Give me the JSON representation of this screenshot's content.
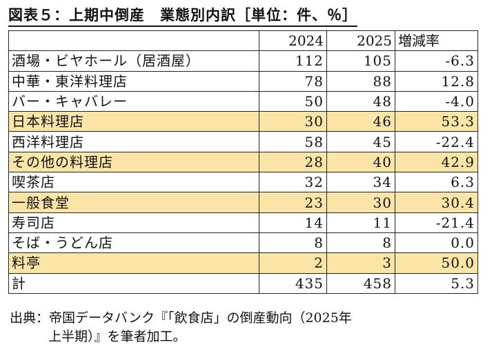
{
  "title": "図表５：上期中倒産　業態別内訳［単位：件、％］",
  "chart_data": {
    "type": "table",
    "columns": [
      "",
      "2024",
      "2025",
      "増減率"
    ],
    "rows": [
      {
        "category": "酒場・ビヤホール（居酒屋）",
        "y2024": "112",
        "y2025": "105",
        "rate": "-6.3",
        "highlight": false
      },
      {
        "category": "中華・東洋料理店",
        "y2024": "78",
        "y2025": "88",
        "rate": "12.8",
        "highlight": false
      },
      {
        "category": "バー・キャバレー",
        "y2024": "50",
        "y2025": "48",
        "rate": "-4.0",
        "highlight": false
      },
      {
        "category": "日本料理店",
        "y2024": "30",
        "y2025": "46",
        "rate": "53.3",
        "highlight": true
      },
      {
        "category": "西洋料理店",
        "y2024": "58",
        "y2025": "45",
        "rate": "-22.4",
        "highlight": false
      },
      {
        "category": "その他の料理店",
        "y2024": "28",
        "y2025": "40",
        "rate": "42.9",
        "highlight": true
      },
      {
        "category": "喫茶店",
        "y2024": "32",
        "y2025": "34",
        "rate": "6.3",
        "highlight": false
      },
      {
        "category": "一般食堂",
        "y2024": "23",
        "y2025": "30",
        "rate": "30.4",
        "highlight": true
      },
      {
        "category": "寿司店",
        "y2024": "14",
        "y2025": "11",
        "rate": "-21.4",
        "highlight": false
      },
      {
        "category": "そば・うどん店",
        "y2024": "8",
        "y2025": "8",
        "rate": "0.0",
        "highlight": false
      },
      {
        "category": "料亭",
        "y2024": "2",
        "y2025": "3",
        "rate": "50.0",
        "highlight": true
      }
    ],
    "total": {
      "category": "計",
      "y2024": "435",
      "y2025": "458",
      "rate": "5.3"
    },
    "highlight_color": "#fbe5a6"
  },
  "source": {
    "line1": "出典：帝国データバンク『「飲食店」の倒産動向（2025年",
    "line2": "上半期）』を筆者加工。"
  }
}
